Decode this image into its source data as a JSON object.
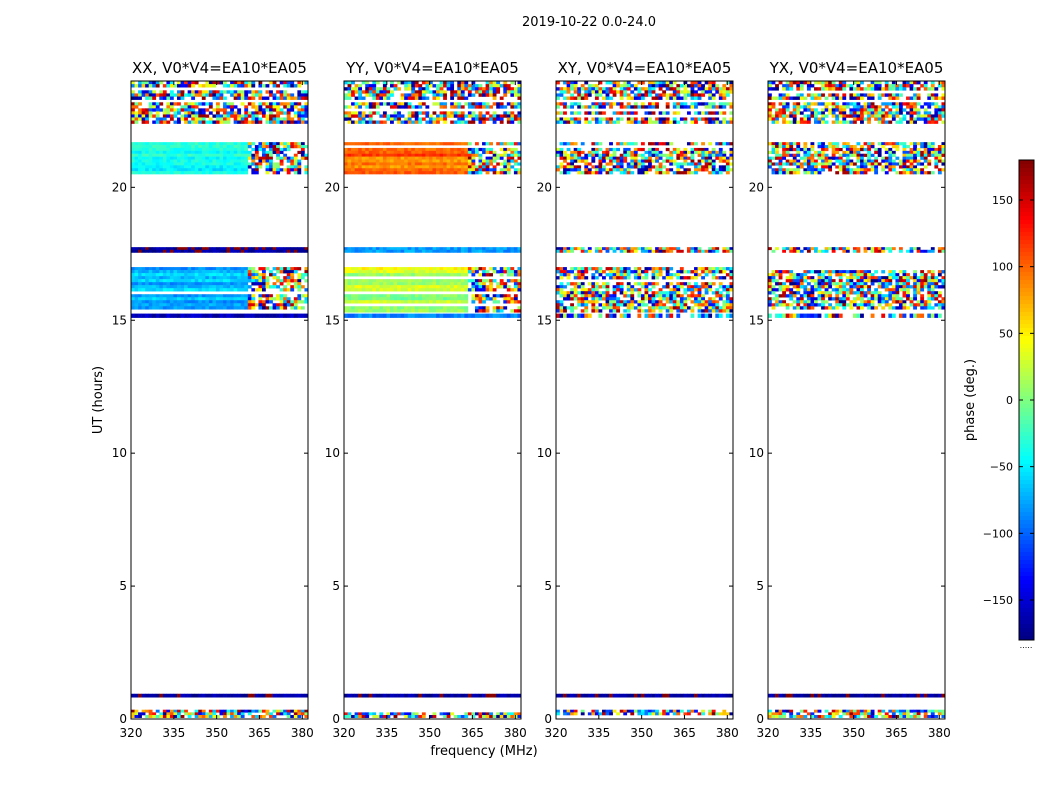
{
  "chart_data": {
    "type": "heatmap",
    "suptitle": "2019-10-22 0.0-24.0",
    "xlabel": "frequency (MHz)",
    "ylabel": "UT (hours)",
    "xlim": [
      320,
      382
    ],
    "ylim": [
      0,
      24
    ],
    "xticks": [
      320,
      335,
      350,
      365,
      380
    ],
    "yticks": [
      0,
      5,
      10,
      15,
      20
    ],
    "colorbar": {
      "label": "phase (deg.)",
      "range": [
        -180,
        180
      ],
      "ticks": [
        150,
        100,
        50,
        0,
        -50,
        -100,
        -150
      ],
      "tick_labels": [
        "150",
        "100",
        "50",
        "0",
        "−50",
        "−100",
        "−150"
      ],
      "footer": "....."
    },
    "panels": [
      {
        "title": "XX, V0*V4=EA10*EA05",
        "pattern": "coherent",
        "base_phase": -60,
        "rfi_start": 361,
        "bands": [
          {
            "t0": 0.05,
            "t1": 0.35,
            "phase": 40,
            "pattern": "noisy"
          },
          {
            "t0": 0.82,
            "t1": 0.95,
            "phase": -170,
            "pattern": "line"
          },
          {
            "t0": 15.1,
            "t1": 15.25,
            "phase": -160,
            "pattern": "line"
          },
          {
            "t0": 15.3,
            "t1": 17.0,
            "phase": -60,
            "pattern": "coherent"
          },
          {
            "t0": 17.55,
            "t1": 17.75,
            "phase": -170,
            "pattern": "line"
          },
          {
            "t0": 20.5,
            "t1": 21.7,
            "phase": -40,
            "pattern": "coherent"
          },
          {
            "t0": 22.4,
            "t1": 23.2,
            "phase": 60,
            "pattern": "noisy"
          },
          {
            "t0": 23.3,
            "t1": 24.0,
            "phase": 50,
            "pattern": "noisy"
          }
        ]
      },
      {
        "title": "YY, V0*V4=EA10*EA05",
        "pattern": "coherent",
        "base_phase": 30,
        "rfi_start": 363,
        "bands": [
          {
            "t0": 0.05,
            "t1": 0.35,
            "phase": 110,
            "pattern": "noisy"
          },
          {
            "t0": 0.82,
            "t1": 0.95,
            "phase": -170,
            "pattern": "line"
          },
          {
            "t0": 15.1,
            "t1": 15.25,
            "phase": -90,
            "pattern": "line"
          },
          {
            "t0": 15.3,
            "t1": 17.0,
            "phase": 20,
            "pattern": "coherent"
          },
          {
            "t0": 17.55,
            "t1": 17.75,
            "phase": -80,
            "pattern": "line"
          },
          {
            "t0": 20.5,
            "t1": 21.7,
            "phase": 100,
            "pattern": "coherent"
          },
          {
            "t0": 22.4,
            "t1": 23.2,
            "phase": 140,
            "pattern": "noisy"
          },
          {
            "t0": 23.3,
            "t1": 24.0,
            "phase": 120,
            "pattern": "noisy"
          }
        ]
      },
      {
        "title": "XY, V0*V4=EA10*EA05",
        "pattern": "noisy",
        "base_phase": 0,
        "rfi_start": 382,
        "bands": [
          {
            "t0": 0.05,
            "t1": 0.35,
            "phase": 0,
            "pattern": "noisy"
          },
          {
            "t0": 0.82,
            "t1": 0.95,
            "phase": -170,
            "pattern": "line"
          },
          {
            "t0": 15.1,
            "t1": 15.25,
            "phase": 0,
            "pattern": "noisy"
          },
          {
            "t0": 15.3,
            "t1": 17.0,
            "phase": 0,
            "pattern": "noisy"
          },
          {
            "t0": 17.55,
            "t1": 17.75,
            "phase": 0,
            "pattern": "noisy"
          },
          {
            "t0": 20.5,
            "t1": 21.7,
            "phase": 0,
            "pattern": "noisy"
          },
          {
            "t0": 22.4,
            "t1": 23.2,
            "phase": 0,
            "pattern": "noisy"
          },
          {
            "t0": 23.3,
            "t1": 24.0,
            "phase": 0,
            "pattern": "noisy"
          }
        ]
      },
      {
        "title": "YX, V0*V4=EA10*EA05",
        "pattern": "noisy",
        "base_phase": 0,
        "rfi_start": 382,
        "bands": [
          {
            "t0": 0.05,
            "t1": 0.35,
            "phase": 0,
            "pattern": "noisy"
          },
          {
            "t0": 0.82,
            "t1": 0.95,
            "phase": -170,
            "pattern": "line"
          },
          {
            "t0": 15.1,
            "t1": 15.25,
            "phase": 0,
            "pattern": "noisy"
          },
          {
            "t0": 15.3,
            "t1": 17.0,
            "phase": 0,
            "pattern": "noisy"
          },
          {
            "t0": 17.55,
            "t1": 17.75,
            "phase": 0,
            "pattern": "noisy"
          },
          {
            "t0": 20.5,
            "t1": 21.7,
            "phase": 0,
            "pattern": "noisy"
          },
          {
            "t0": 22.4,
            "t1": 23.2,
            "phase": 0,
            "pattern": "noisy"
          },
          {
            "t0": 23.3,
            "t1": 24.0,
            "phase": 0,
            "pattern": "noisy"
          }
        ]
      }
    ]
  }
}
